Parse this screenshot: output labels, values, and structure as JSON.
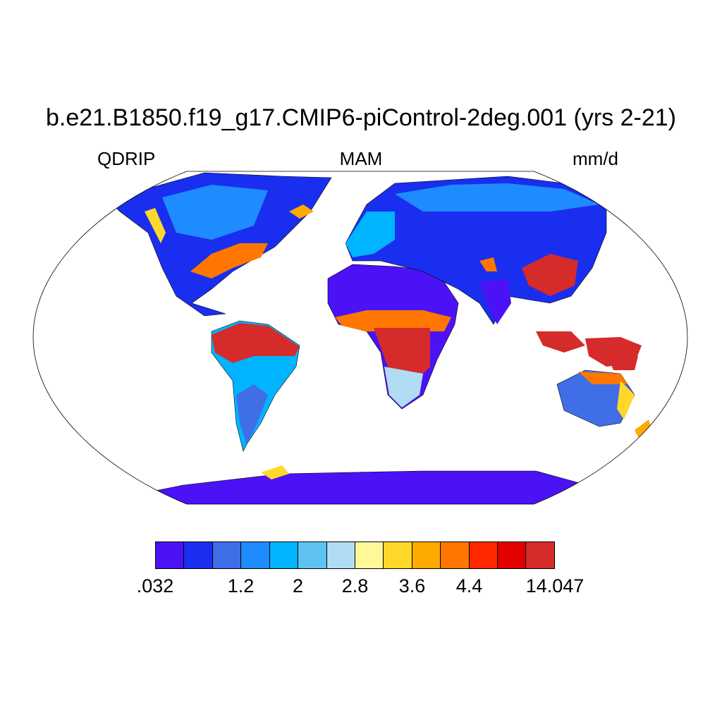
{
  "title": "b.e21.B1850.f19_g17.CMIP6-piControl-2deg.001 (yrs 2-21)",
  "left_string": "QDRIP",
  "center_string": "MAM",
  "right_string": "mm/d",
  "colorbar": {
    "colors": [
      "#4b12f5",
      "#1a2ef0",
      "#3f6ee6",
      "#1e8cff",
      "#00b4ff",
      "#5ec3f2",
      "#b0dcf4",
      "#fff899",
      "#ffd82a",
      "#ffaa00",
      "#ff7700",
      "#ff2a00",
      "#e30000",
      "#d62b2b"
    ],
    "levels": [
      0.4,
      0.8,
      1.2,
      1.6,
      2,
      2.4,
      2.8,
      3.2,
      3.6,
      4,
      4.4,
      4.8,
      5.2
    ],
    "labels": [
      {
        "text": ".032",
        "boundary": 0
      },
      {
        "text": "1.2",
        "boundary": 3
      },
      {
        "text": "2",
        "boundary": 5
      },
      {
        "text": "2.8",
        "boundary": 7
      },
      {
        "text": "3.6",
        "boundary": 9
      },
      {
        "text": "4.4",
        "boundary": 11
      },
      {
        "text": "14.047",
        "boundary": 14
      }
    ]
  }
}
